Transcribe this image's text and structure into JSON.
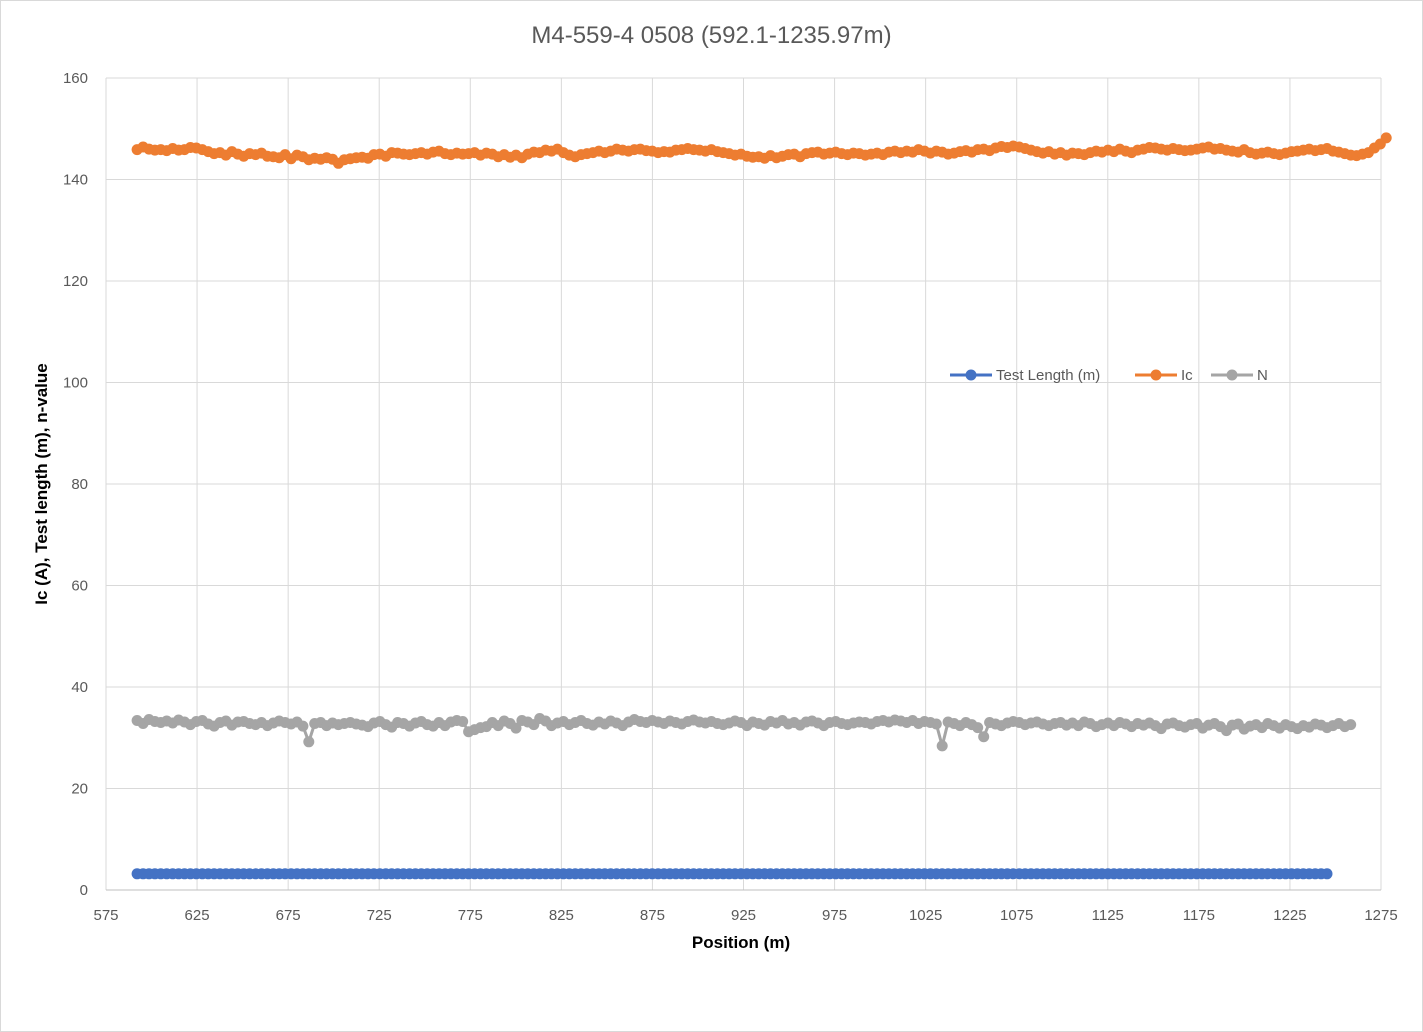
{
  "chart_data": {
    "type": "line",
    "title": "M4-559-4 0508 (592.1-1235.97m)",
    "xlabel": "Position (m)",
    "ylabel": "Ic (A), Test length (m), n-value",
    "xlim": [
      575,
      1275
    ],
    "ylim": [
      0,
      160
    ],
    "x_ticks": [
      "575",
      "625",
      "675",
      "725",
      "775",
      "825",
      "875",
      "925",
      "975",
      "1025",
      "1075",
      "1125",
      "1175",
      "1225",
      "1275"
    ],
    "y_ticks": [
      "0",
      "20",
      "40",
      "60",
      "80",
      "100",
      "120",
      "140",
      "160"
    ],
    "grid": true,
    "legend_position": "right-middle",
    "x_start": 592.1,
    "x_step": 3.25,
    "series": [
      {
        "name": "Test Length (m)",
        "color": "#4472c4",
        "values": [
          3.2,
          3.2,
          3.2,
          3.2,
          3.2,
          3.2,
          3.2,
          3.2,
          3.2,
          3.2,
          3.2,
          3.2,
          3.2,
          3.2,
          3.2,
          3.2,
          3.2,
          3.2,
          3.2,
          3.2,
          3.2,
          3.2,
          3.2,
          3.2,
          3.2,
          3.2,
          3.2,
          3.2,
          3.2,
          3.2,
          3.2,
          3.2,
          3.2,
          3.2,
          3.2,
          3.2,
          3.2,
          3.2,
          3.2,
          3.2,
          3.2,
          3.2,
          3.2,
          3.2,
          3.2,
          3.2,
          3.2,
          3.2,
          3.2,
          3.2,
          3.2,
          3.2,
          3.2,
          3.2,
          3.2,
          3.2,
          3.2,
          3.2,
          3.2,
          3.2,
          3.2,
          3.2,
          3.2,
          3.2,
          3.2,
          3.2,
          3.2,
          3.2,
          3.2,
          3.2,
          3.2,
          3.2,
          3.2,
          3.2,
          3.2,
          3.2,
          3.2,
          3.2,
          3.2,
          3.2,
          3.2,
          3.2,
          3.2,
          3.2,
          3.2,
          3.2,
          3.2,
          3.2,
          3.2,
          3.2,
          3.2,
          3.2,
          3.2,
          3.2,
          3.2,
          3.2,
          3.2,
          3.2,
          3.2,
          3.2,
          3.2,
          3.2,
          3.2,
          3.2,
          3.2,
          3.2,
          3.2,
          3.2,
          3.2,
          3.2,
          3.2,
          3.2,
          3.2,
          3.2,
          3.2,
          3.2,
          3.2,
          3.2,
          3.2,
          3.2,
          3.2,
          3.2,
          3.2,
          3.2,
          3.2,
          3.2,
          3.2,
          3.2,
          3.2,
          3.2,
          3.2,
          3.2,
          3.2,
          3.2,
          3.2,
          3.2,
          3.2,
          3.2,
          3.2,
          3.2,
          3.2,
          3.2,
          3.2,
          3.2,
          3.2,
          3.2,
          3.2,
          3.2,
          3.2,
          3.2,
          3.2,
          3.2,
          3.2,
          3.2,
          3.2,
          3.2,
          3.2,
          3.2,
          3.2,
          3.2,
          3.2,
          3.2,
          3.2,
          3.2,
          3.2,
          3.2,
          3.2,
          3.2,
          3.2,
          3.2,
          3.2,
          3.2,
          3.2,
          3.2,
          3.2,
          3.2,
          3.2,
          3.2,
          3.2,
          3.2,
          3.2,
          3.2,
          3.2,
          3.2,
          3.2,
          3.2,
          3.2,
          3.2,
          3.2,
          3.2,
          3.2,
          3.2,
          3.2,
          3.2,
          3.2,
          3.2,
          3.2,
          3.2,
          3.2,
          3.2,
          3.2,
          3.2
        ]
      },
      {
        "name": "Ic",
        "color": "#ed7d31",
        "values": [
          145.9,
          146.4,
          146.0,
          145.8,
          145.9,
          145.7,
          146.1,
          145.8,
          145.9,
          146.3,
          146.2,
          145.9,
          145.5,
          145.1,
          145.3,
          144.8,
          145.5,
          145.0,
          144.6,
          145.1,
          144.9,
          145.2,
          144.6,
          144.5,
          144.3,
          144.9,
          144.1,
          144.8,
          144.5,
          143.9,
          144.2,
          144.0,
          144.3,
          144.0,
          143.2,
          143.9,
          144.1,
          144.3,
          144.4,
          144.2,
          144.9,
          145.0,
          144.6,
          145.3,
          145.2,
          145.0,
          144.9,
          145.1,
          145.3,
          145.0,
          145.4,
          145.6,
          145.1,
          144.9,
          145.2,
          145.0,
          145.1,
          145.3,
          144.8,
          145.2,
          145.0,
          144.5,
          144.9,
          144.4,
          144.8,
          144.3,
          145.0,
          145.4,
          145.3,
          145.8,
          145.6,
          146.0,
          145.3,
          144.8,
          144.5,
          144.9,
          145.1,
          145.3,
          145.6,
          145.3,
          145.6,
          146.0,
          145.8,
          145.6,
          145.9,
          146.0,
          145.7,
          145.6,
          145.3,
          145.5,
          145.4,
          145.8,
          145.9,
          146.1,
          145.9,
          145.8,
          145.6,
          145.9,
          145.5,
          145.3,
          145.1,
          144.8,
          145.0,
          144.6,
          144.4,
          144.5,
          144.2,
          144.7,
          144.3,
          144.6,
          144.9,
          145.0,
          144.5,
          145.1,
          145.3,
          145.4,
          145.0,
          145.2,
          145.4,
          145.1,
          144.9,
          145.2,
          145.1,
          144.8,
          145.0,
          145.2,
          144.9,
          145.4,
          145.6,
          145.3,
          145.6,
          145.4,
          145.9,
          145.6,
          145.2,
          145.6,
          145.4,
          145.0,
          145.2,
          145.5,
          145.7,
          145.4,
          145.9,
          146.0,
          145.7,
          146.2,
          146.5,
          146.3,
          146.6,
          146.4,
          146.1,
          145.8,
          145.5,
          145.2,
          145.5,
          145.0,
          145.3,
          144.8,
          145.2,
          145.1,
          144.9,
          145.3,
          145.6,
          145.4,
          145.8,
          145.5,
          146.0,
          145.6,
          145.3,
          145.8,
          146.0,
          146.3,
          146.2,
          146.0,
          145.8,
          146.1,
          145.9,
          145.7,
          145.8,
          146.0,
          146.2,
          146.4,
          146.0,
          146.1,
          145.8,
          145.6,
          145.4,
          145.9,
          145.3,
          145.0,
          145.2,
          145.4,
          145.1,
          144.9,
          145.2,
          145.5,
          145.6,
          145.8,
          146.0,
          145.7,
          145.9,
          146.1,
          145.6,
          145.4,
          145.1,
          144.8,
          144.7,
          145.0,
          145.3,
          146.2,
          147.0,
          148.2
        ]
      },
      {
        "name": "N",
        "color": "#a5a5a5",
        "values": [
          33.4,
          32.8,
          33.6,
          33.2,
          33.0,
          33.3,
          32.9,
          33.5,
          33.1,
          32.6,
          33.2,
          33.4,
          32.7,
          32.3,
          33.0,
          33.3,
          32.5,
          33.1,
          33.2,
          32.8,
          32.6,
          33.0,
          32.4,
          32.9,
          33.3,
          33.0,
          32.7,
          33.1,
          32.3,
          29.2,
          32.8,
          33.0,
          32.4,
          32.9,
          32.6,
          32.8,
          33.0,
          32.7,
          32.5,
          32.2,
          32.9,
          33.2,
          32.6,
          32.1,
          33.0,
          32.8,
          32.3,
          32.9,
          33.2,
          32.6,
          32.3,
          33.0,
          32.4,
          33.1,
          33.4,
          33.2,
          31.2,
          31.6,
          32.0,
          32.2,
          33.0,
          32.4,
          33.3,
          32.8,
          31.9,
          33.4,
          33.1,
          32.6,
          33.8,
          33.3,
          32.4,
          32.9,
          33.2,
          32.6,
          33.0,
          33.4,
          32.8,
          32.5,
          33.1,
          32.7,
          33.3,
          32.9,
          32.4,
          33.1,
          33.6,
          33.2,
          33.0,
          33.4,
          33.1,
          32.8,
          33.3,
          33.0,
          32.7,
          33.2,
          33.5,
          33.1,
          32.9,
          33.2,
          32.8,
          32.6,
          32.9,
          33.3,
          33.0,
          32.4,
          33.1,
          32.8,
          32.5,
          33.2,
          32.9,
          33.4,
          32.7,
          33.0,
          32.5,
          33.1,
          33.3,
          32.9,
          32.4,
          33.0,
          33.2,
          32.8,
          32.6,
          32.9,
          33.1,
          33.0,
          32.7,
          33.2,
          33.4,
          33.1,
          33.5,
          33.3,
          33.0,
          33.4,
          32.8,
          33.2,
          33.0,
          32.7,
          28.4,
          33.1,
          32.8,
          32.4,
          33.0,
          32.6,
          32.0,
          30.2,
          33.0,
          32.7,
          32.4,
          32.9,
          33.2,
          33.0,
          32.6,
          32.9,
          33.1,
          32.7,
          32.4,
          32.8,
          33.0,
          32.5,
          32.9,
          32.4,
          33.1,
          32.8,
          32.2,
          32.6,
          32.9,
          32.4,
          33.0,
          32.7,
          32.2,
          32.8,
          32.5,
          32.9,
          32.4,
          31.8,
          32.7,
          32.9,
          32.4,
          32.1,
          32.6,
          32.8,
          31.9,
          32.5,
          32.8,
          32.2,
          31.4,
          32.5,
          32.7,
          31.7,
          32.3,
          32.6,
          32.0,
          32.8,
          32.4,
          31.9,
          32.6,
          32.2,
          31.8,
          32.4,
          32.1,
          32.7,
          32.5,
          32.0,
          32.4,
          32.8,
          32.2,
          32.6
        ]
      }
    ]
  }
}
